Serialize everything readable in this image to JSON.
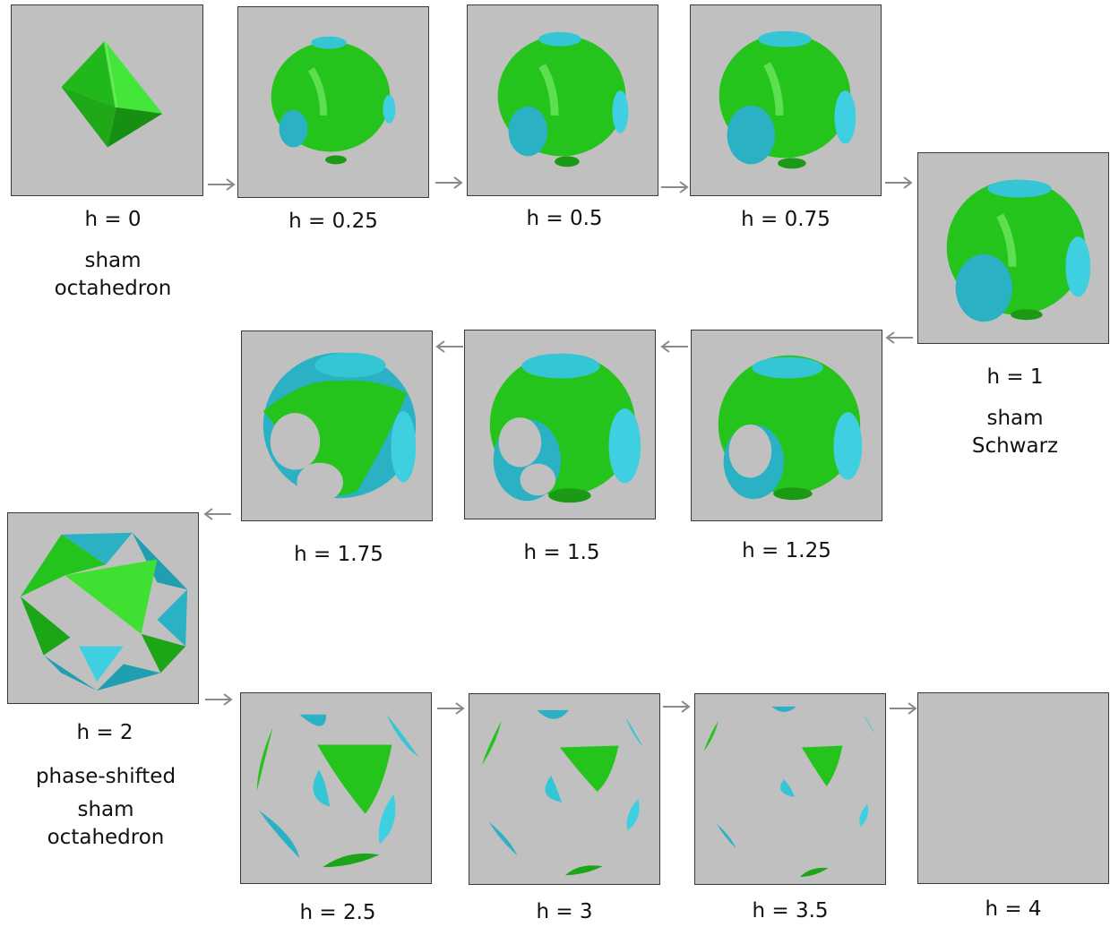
{
  "colors": {
    "panel": "#c0c0c0",
    "green": "#22c51a",
    "cyan": "#33c4d4",
    "arrow": "#8a8a8a"
  },
  "panels": [
    {
      "label": "h = 0",
      "note": [
        "sham",
        "octahedron"
      ],
      "shape": "octahedron"
    },
    {
      "label": "h = 0.25",
      "shape": "tube-small"
    },
    {
      "label": "h = 0.5",
      "shape": "tube-medium"
    },
    {
      "label": "h = 0.75",
      "shape": "tube-large"
    },
    {
      "label": "h = 1",
      "note": [
        "sham",
        "Schwarz"
      ],
      "shape": "schwarz"
    },
    {
      "label": "h = 1.25",
      "shape": "cage-1"
    },
    {
      "label": "h = 1.5",
      "shape": "cage-2"
    },
    {
      "label": "h = 1.75",
      "shape": "cage-3"
    },
    {
      "label": "h = 2",
      "note": [
        "phase-shifted",
        "sham",
        "octahedron"
      ],
      "shape": "cuboctahedron"
    },
    {
      "label": "h = 2.5",
      "shape": "fragments-large"
    },
    {
      "label": "h = 3",
      "shape": "fragments-medium"
    },
    {
      "label": "h = 3.5",
      "shape": "fragments-small"
    },
    {
      "label": "h = 4",
      "shape": "empty"
    }
  ]
}
